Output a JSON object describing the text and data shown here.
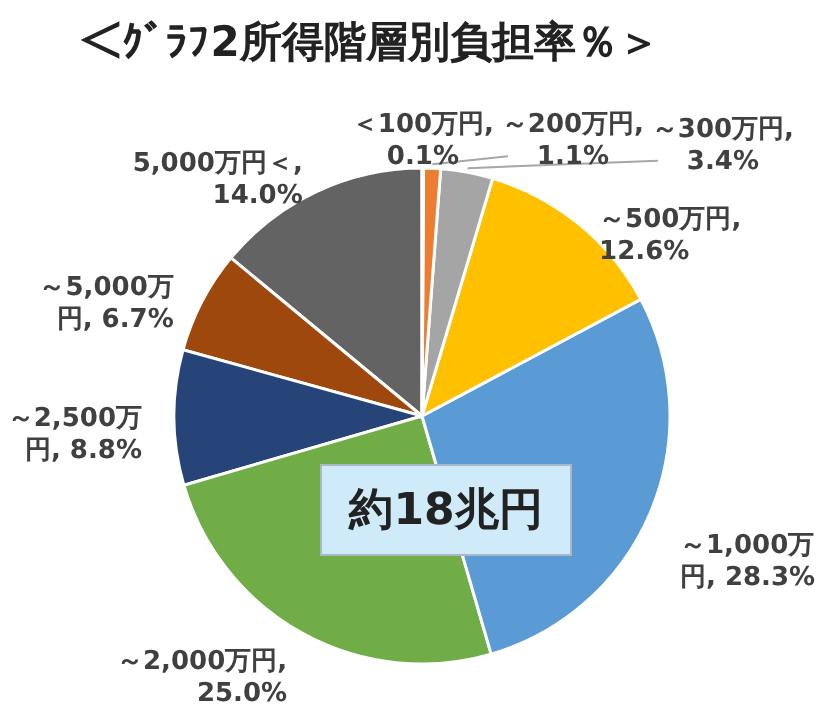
{
  "chart_data": {
    "type": "pie",
    "title": "＜ｸﾞﾗﾌ2所得階層別負担率％＞",
    "categories": [
      "＜100万円",
      "～200万円",
      "～300万円",
      "～500万円",
      "～1,000万円",
      "～2,000万円",
      "～2,500万円",
      "～5,000万円",
      "5,000万円＜"
    ],
    "values": [
      0.1,
      1.1,
      3.4,
      12.6,
      28.3,
      25.0,
      8.8,
      6.7,
      14.0
    ],
    "value_labels": [
      ", 0.1%",
      ", 1.1%",
      ", 3.4%",
      ", 12.6%",
      ", 28.3%",
      ", 25.0%",
      ", 8.8%",
      ", 6.7%",
      ", 14.0%"
    ],
    "colors": [
      "#4472c4",
      "#ed7d31",
      "#a5a5a5",
      "#ffc000",
      "#5b9bd5",
      "#70ad47",
      "#264478",
      "#9e480e",
      "#636363"
    ],
    "annotations": [
      "約18兆円"
    ]
  }
}
